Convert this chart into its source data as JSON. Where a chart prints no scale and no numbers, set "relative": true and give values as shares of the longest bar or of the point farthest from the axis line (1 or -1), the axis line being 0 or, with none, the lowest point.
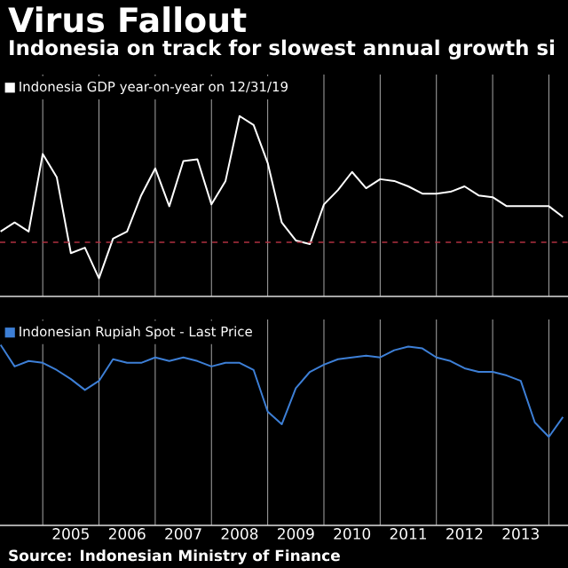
{
  "chart_data": [
    {
      "type": "line",
      "title": "Virus Fallout",
      "subtitle": "Indonesia on track for slowest annual growth si",
      "relative": true,
      "xlim": [
        2004.24,
        2014.34
      ],
      "xticks": [
        {
          "value": 2005,
          "label": null
        },
        {
          "value": 2006,
          "label": null
        },
        {
          "value": 2007,
          "label": null
        },
        {
          "value": 2008,
          "label": null
        },
        {
          "value": 2009,
          "label": null
        },
        {
          "value": 2010,
          "label": null
        },
        {
          "value": 2011,
          "label": null
        },
        {
          "value": 2012,
          "label": null
        },
        {
          "value": 2013,
          "label": null
        },
        {
          "value": 2014,
          "label": null
        }
      ],
      "tick_labels": false,
      "grid": "x",
      "legend": "top left",
      "ref_lines": [
        {
          "axis": "y",
          "value": 0.3,
          "color": "#b03040",
          "line_style": "dashed"
        }
      ],
      "x": [
        2004.25,
        2004.5,
        2004.75,
        2005,
        2005.25,
        2005.5,
        2005.75,
        2006,
        2006.25,
        2006.5,
        2006.75,
        2007,
        2007.25,
        2007.5,
        2007.75,
        2008,
        2008.25,
        2008.5,
        2008.75,
        2009,
        2009.25,
        2009.5,
        2009.75,
        2010,
        2010.25,
        2010.5,
        2010.75,
        2011,
        2011.25,
        2011.5,
        2011.75,
        2012,
        2012.25,
        2012.5,
        2012.75,
        2013,
        2013.25,
        2013.5,
        2013.75,
        2014,
        2014.25
      ],
      "series": [
        {
          "name": "Indonesia GDP year-on-year on 12/31/19",
          "color": "#ffffff",
          "values": [
            0.36,
            0.41,
            0.36,
            0.79,
            0.66,
            0.24,
            0.27,
            0.1,
            0.32,
            0.36,
            0.56,
            0.71,
            0.5,
            0.75,
            0.76,
            0.51,
            0.64,
            1,
            0.95,
            0.74,
            0.41,
            0.31,
            0.29,
            0.51,
            0.59,
            0.69,
            0.6,
            0.65,
            0.64,
            0.61,
            0.57,
            0.57,
            0.58,
            0.61,
            0.56,
            0.55,
            0.5,
            0.5,
            0.5,
            0.5,
            0.44
          ]
        }
      ]
    },
    {
      "type": "line",
      "relative": true,
      "xlim": [
        2004.24,
        2014.34
      ],
      "xticks": [
        {
          "value": 2005,
          "label": null
        },
        {
          "value": 2005.5,
          "label": "2005"
        },
        {
          "value": 2006,
          "label": null
        },
        {
          "value": 2006.5,
          "label": "2006"
        },
        {
          "value": 2007,
          "label": null
        },
        {
          "value": 2007.5,
          "label": "2007"
        },
        {
          "value": 2008,
          "label": null
        },
        {
          "value": 2008.5,
          "label": "2008"
        },
        {
          "value": 2009,
          "label": null
        },
        {
          "value": 2009.5,
          "label": "2009"
        },
        {
          "value": 2010,
          "label": null
        },
        {
          "value": 2010.5,
          "label": "2010"
        },
        {
          "value": 2011,
          "label": null
        },
        {
          "value": 2011.5,
          "label": "2011"
        },
        {
          "value": 2012,
          "label": null
        },
        {
          "value": 2012.5,
          "label": "2012"
        },
        {
          "value": 2013,
          "label": null
        },
        {
          "value": 2013.5,
          "label": "2013"
        },
        {
          "value": 2014,
          "label": null
        }
      ],
      "tick_labels": "x",
      "grid": "x",
      "legend": "top left",
      "annotations": [
        "Source: Indonesian Ministry of Finance"
      ],
      "x": [
        2004.25,
        2004.5,
        2004.75,
        2005,
        2005.25,
        2005.5,
        2005.75,
        2006,
        2006.25,
        2006.5,
        2006.75,
        2007,
        2007.25,
        2007.5,
        2007.75,
        2008,
        2008.25,
        2008.5,
        2008.75,
        2009,
        2009.25,
        2009.5,
        2009.75,
        2010,
        2010.25,
        2010.5,
        2010.75,
        2011,
        2011.25,
        2011.5,
        2011.75,
        2012,
        2012.25,
        2012.5,
        2012.75,
        2013,
        2013.25,
        2013.5,
        2013.75,
        2014,
        2014.25
      ],
      "series": [
        {
          "name": "Indonesian Rupiah Spot - Last Price",
          "color": "#3d7fd6",
          "values": [
            1,
            0.88,
            0.91,
            0.9,
            0.86,
            0.81,
            0.75,
            0.8,
            0.92,
            0.9,
            0.9,
            0.93,
            0.91,
            0.93,
            0.91,
            0.88,
            0.9,
            0.9,
            0.86,
            0.63,
            0.56,
            0.76,
            0.85,
            0.89,
            0.92,
            0.93,
            0.94,
            0.93,
            0.97,
            0.99,
            0.98,
            0.93,
            0.91,
            0.87,
            0.85,
            0.85,
            0.83,
            0.8,
            0.57,
            0.49,
            0.6
          ]
        }
      ]
    }
  ]
}
